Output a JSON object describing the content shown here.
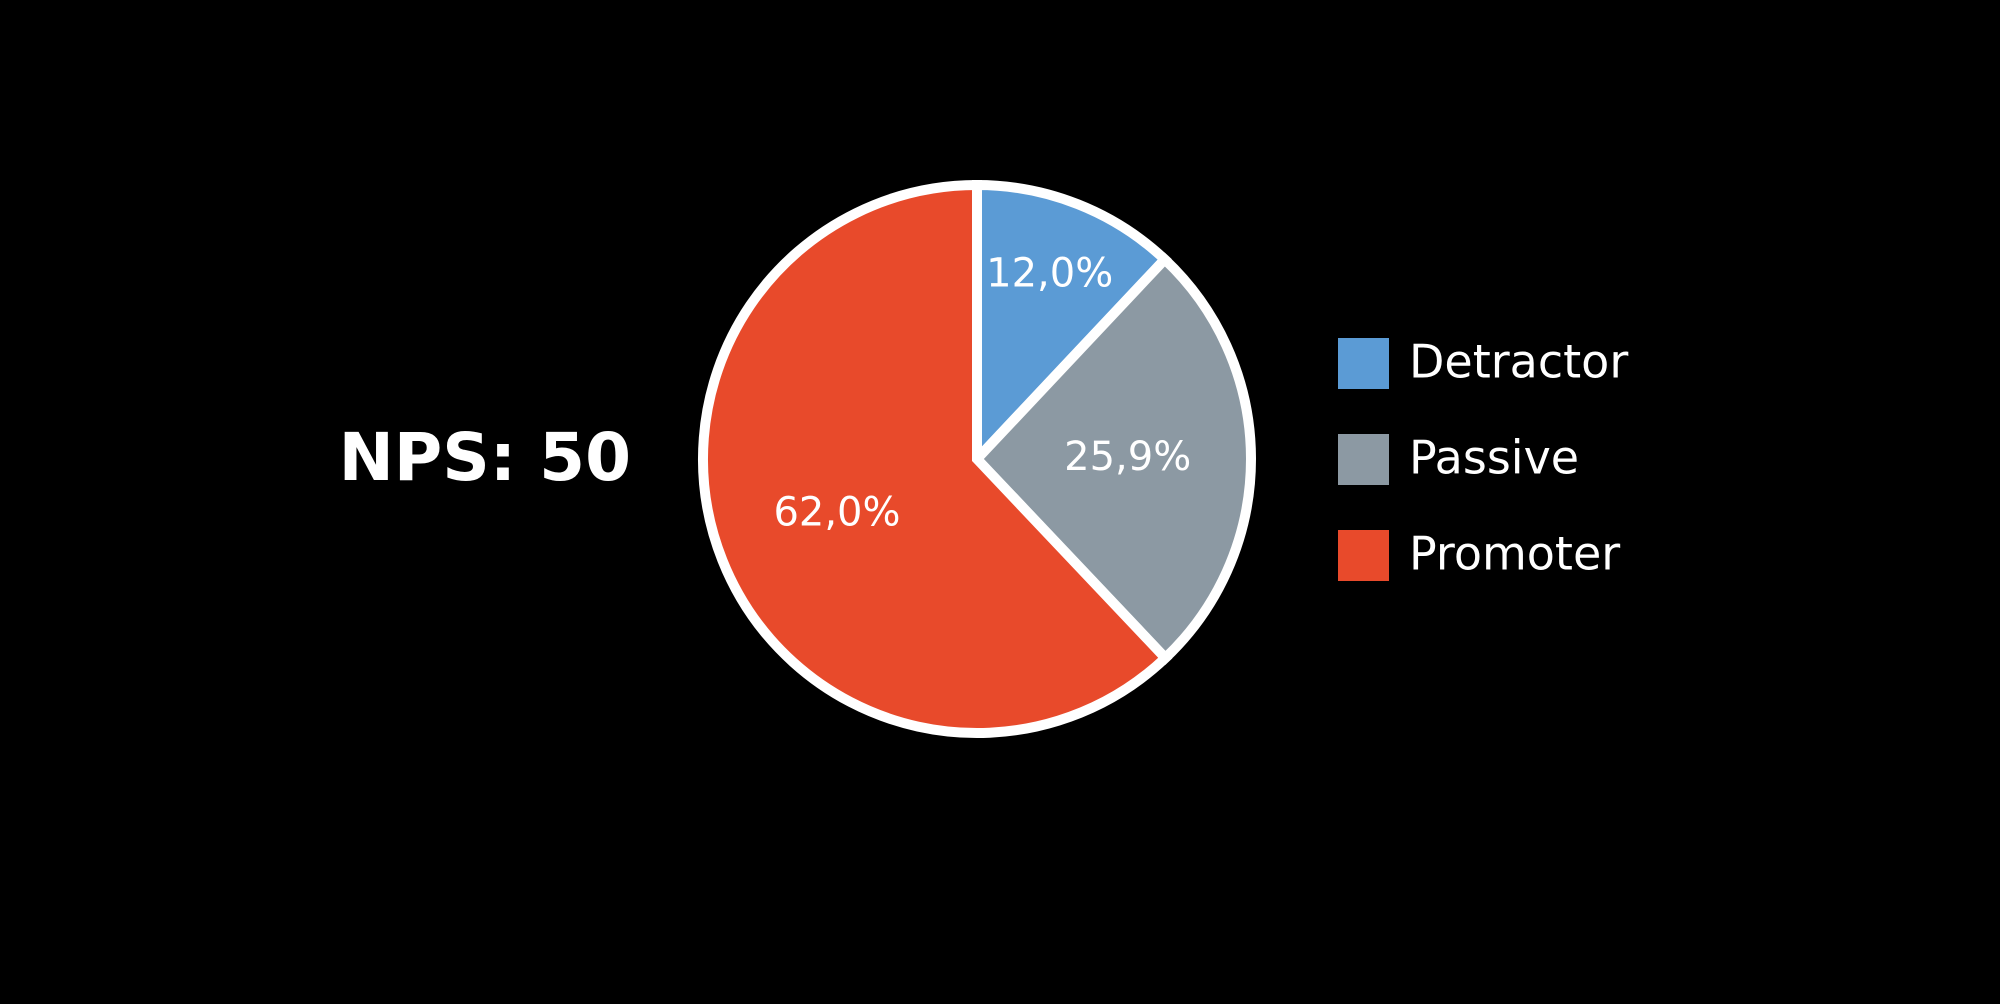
{
  "chart_data": {
    "type": "pie",
    "annotation": "NPS: 50",
    "categories": [
      "Detractor",
      "Passive",
      "Promoter"
    ],
    "values": [
      12.0,
      25.9,
      62.0
    ],
    "value_labels": [
      "12,0%",
      "25,9%",
      "62,0%"
    ],
    "colors": [
      "#5b9bd5",
      "#8c99a3",
      "#e84a2b"
    ],
    "legend": "right"
  }
}
